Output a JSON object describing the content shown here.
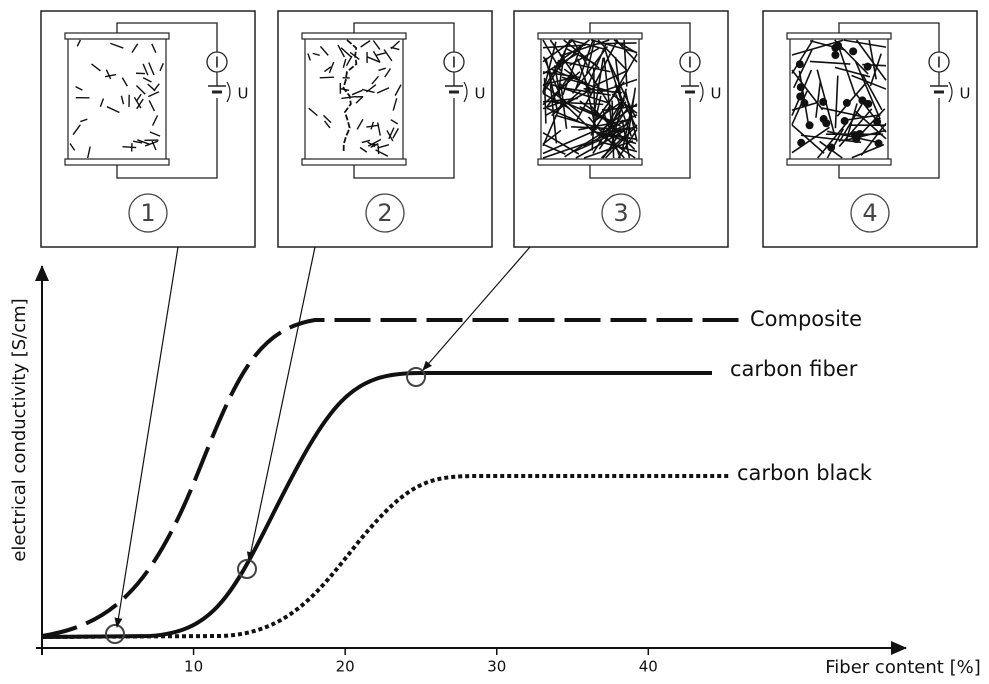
{
  "panels": [
    {
      "number": "1",
      "current": "I",
      "voltage": "U"
    },
    {
      "number": "2",
      "current": "I",
      "voltage": "U"
    },
    {
      "number": "3",
      "current": "I",
      "voltage": "U"
    },
    {
      "number": "4",
      "current": "I",
      "voltage": "U"
    }
  ],
  "axis": {
    "y_label": "electrical conductivity [S/cm]",
    "x_label": "Fiber content [%]",
    "xlim": [
      0,
      57
    ],
    "xticks": [
      10,
      20,
      30,
      40
    ]
  },
  "curves": [
    {
      "name": "Composite"
    },
    {
      "name": "carbon fiber"
    },
    {
      "name": "carbon black"
    }
  ]
}
